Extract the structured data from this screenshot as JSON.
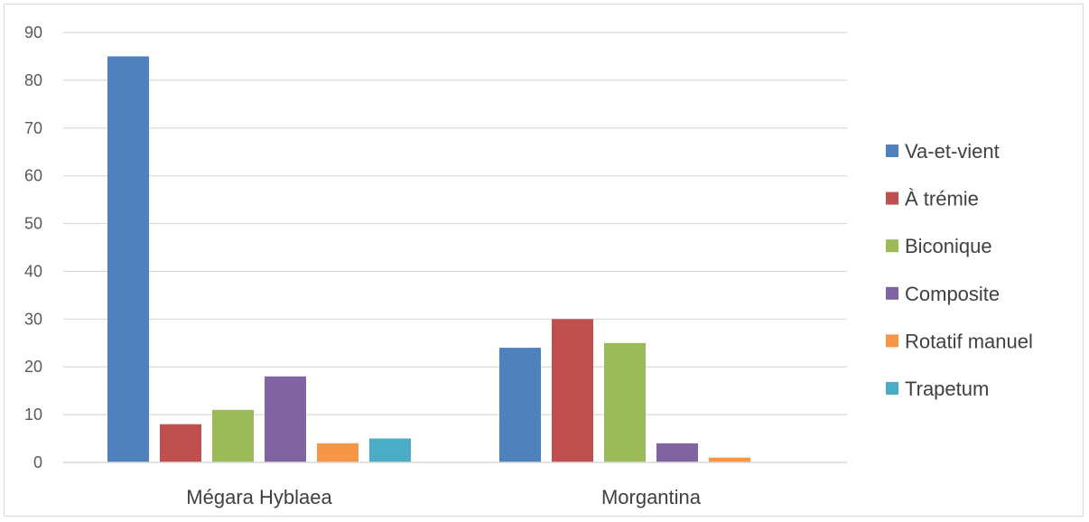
{
  "chart_data": {
    "type": "bar",
    "title": "",
    "xlabel": "",
    "ylabel": "",
    "ylim": [
      0,
      90
    ],
    "yticks": [
      0,
      10,
      20,
      30,
      40,
      50,
      60,
      70,
      80,
      90
    ],
    "grid": true,
    "legend_position": "right",
    "categories": [
      "Mégara Hyblaea",
      "Morgantina"
    ],
    "series": [
      {
        "name": "Va-et-vient",
        "color": "#4F81BD",
        "values": [
          85,
          24
        ]
      },
      {
        "name": "À trémie",
        "color": "#C0504D",
        "values": [
          8,
          30
        ]
      },
      {
        "name": "Biconique",
        "color": "#9BBB59",
        "values": [
          11,
          25
        ]
      },
      {
        "name": "Composite",
        "color": "#8064A2",
        "values": [
          18,
          4
        ]
      },
      {
        "name": "Rotatif manuel",
        "color": "#F79646",
        "values": [
          4,
          1
        ]
      },
      {
        "name": "Trapetum",
        "color": "#4BACC6",
        "values": [
          5,
          null
        ]
      }
    ]
  }
}
